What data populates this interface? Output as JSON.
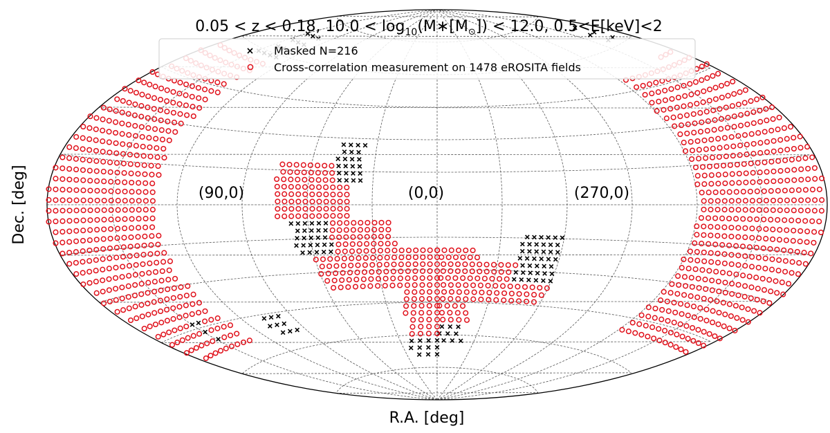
{
  "chart_data": {
    "type": "scatter",
    "projection": "aitoff",
    "title": "0.05 < z < 0.18, 10.0 < log10(M*[M☉]) < 12.0, 0.5<E[keV]<2",
    "title_parts": {
      "z": "0.05 < z < 0.18, 10.0 < log",
      "sub": "10",
      "mass": "(M∗[M",
      "sun": "⊙",
      "tail": "]) < 12.0, 0.5<E[keV]<2"
    },
    "xlabel": "R.A. [deg]",
    "ylabel": "Dec. [deg]",
    "grid": true,
    "legend_position": "top-center",
    "annotations": [
      "(90,0)",
      "(0,0)",
      "(270,0)"
    ],
    "series": [
      {
        "name": "Masked N=216",
        "marker": "x",
        "color": "#000000",
        "count": 216,
        "regions": [
          {
            "ra_min": 130,
            "ra_max": 150,
            "dec_min": 58,
            "dec_max": 70
          },
          {
            "ra_min": 35,
            "ra_max": 48,
            "dec_min": 10,
            "dec_max": 30
          },
          {
            "ra_min": 50,
            "ra_max": 68,
            "dec_min": -22,
            "dec_max": -5
          },
          {
            "ra_min": 95,
            "ra_max": 110,
            "dec_min": -55,
            "dec_max": -45
          },
          {
            "ra_min": 300,
            "ra_max": 320,
            "dec_min": -36,
            "dec_max": -12
          },
          {
            "ra_min": 340,
            "ra_max": 360,
            "dec_min": -65,
            "dec_max": -55
          },
          {
            "ra_min": 0,
            "ra_max": 25,
            "dec_min": -70,
            "dec_max": -62
          },
          {
            "ra_min": 145,
            "ra_max": 152,
            "dec_min": -50,
            "dec_max": -42
          },
          {
            "ra_min": 190,
            "ra_max": 200,
            "dec_min": 60,
            "dec_max": 70
          }
        ]
      },
      {
        "name": "Cross-correlation measurement on 1478 eROSITA fields",
        "marker": "o",
        "color": "#e0101a",
        "count": 1478,
        "regions": [
          {
            "ra_min": 130,
            "ra_max": 180,
            "dec_min": -55,
            "dec_max": 58
          },
          {
            "ra_min": 180,
            "ra_max": 195,
            "dec_min": -50,
            "dec_max": 55
          },
          {
            "ra_min": 40,
            "ra_max": 75,
            "dec_min": -8,
            "dec_max": 20
          },
          {
            "ra_min": 20,
            "ra_max": 60,
            "dec_min": -40,
            "dec_max": -8
          },
          {
            "ra_min": 340,
            "ra_max": 360,
            "dec_min": -60,
            "dec_max": -20
          },
          {
            "ra_min": 0,
            "ra_max": 20,
            "dec_min": -60,
            "dec_max": -20
          },
          {
            "ra_min": 300,
            "ra_max": 340,
            "dec_min": -45,
            "dec_max": -25
          },
          {
            "ra_min": 185,
            "ra_max": 240,
            "dec_min": -50,
            "dec_max": 50
          }
        ]
      }
    ]
  }
}
